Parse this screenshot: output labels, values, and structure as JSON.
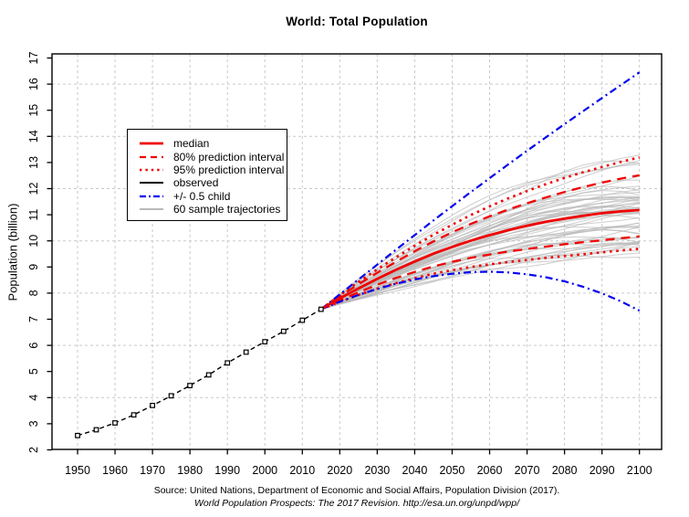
{
  "chart_data": {
    "type": "line",
    "title": "World: Total Population",
    "ylabel": "Population (billion)",
    "xlabel": "",
    "xlim": [
      1943,
      2107
    ],
    "ylim": [
      2,
      17
    ],
    "x_ticks": [
      1950,
      1960,
      1970,
      1980,
      1990,
      2000,
      2010,
      2020,
      2030,
      2040,
      2050,
      2060,
      2070,
      2080,
      2090,
      2100
    ],
    "y_ticks": [
      2,
      3,
      4,
      5,
      6,
      7,
      8,
      9,
      10,
      11,
      12,
      13,
      14,
      15,
      16,
      17
    ],
    "y_gridlines": [
      4,
      6,
      8,
      10,
      12,
      14,
      16
    ],
    "grid": true,
    "colors": {
      "median": "#f00000",
      "observed": "#000000",
      "half_child": "#0000ee",
      "trajectories": "#b9b9b9",
      "gridline": "#c9c9c9",
      "axis": "#000000"
    },
    "series": [
      {
        "name": "pi95-upper",
        "group": "95% prediction interval",
        "color": "#f00000",
        "dash": "2.6,4.6",
        "width": 2.6,
        "marker": "none",
        "x_start": 2015,
        "x_step": 5,
        "values": [
          7.38,
          7.92,
          8.43,
          8.91,
          9.37,
          9.81,
          10.23,
          10.62,
          10.99,
          11.32,
          11.63,
          11.91,
          12.17,
          12.41,
          12.63,
          12.83,
          13.02,
          13.2
        ]
      },
      {
        "name": "pi95-lower",
        "group": "95% prediction interval",
        "color": "#f00000",
        "dash": "2.6,4.6",
        "width": 2.6,
        "marker": "none",
        "x_start": 2015,
        "x_step": 5,
        "values": [
          7.38,
          7.67,
          7.93,
          8.17,
          8.38,
          8.57,
          8.74,
          8.88,
          9.0,
          9.1,
          9.19,
          9.27,
          9.35,
          9.42,
          9.49,
          9.56,
          9.63,
          9.7
        ]
      },
      {
        "name": "pi80-upper",
        "group": "80% prediction interval",
        "color": "#f00000",
        "dash": "10,7",
        "width": 2.3,
        "marker": "none",
        "x_start": 2015,
        "x_step": 5,
        "values": [
          7.38,
          7.88,
          8.34,
          8.78,
          9.2,
          9.6,
          9.98,
          10.33,
          10.65,
          10.94,
          11.2,
          11.44,
          11.66,
          11.87,
          12.06,
          12.23,
          12.38,
          12.51
        ]
      },
      {
        "name": "pi80-lower",
        "group": "80% prediction interval",
        "color": "#f00000",
        "dash": "10,7",
        "width": 2.3,
        "marker": "none",
        "x_start": 2015,
        "x_step": 5,
        "values": [
          7.38,
          7.72,
          8.03,
          8.32,
          8.58,
          8.81,
          9.02,
          9.2,
          9.35,
          9.48,
          9.59,
          9.69,
          9.78,
          9.87,
          9.95,
          10.02,
          10.1,
          10.17
        ]
      },
      {
        "name": "half-child-upper",
        "group": "+/- 0.5 child",
        "color": "#0000ee",
        "dash": "8,4,2,4",
        "width": 2.2,
        "marker": "none",
        "x_start": 2015,
        "x_step": 5,
        "values": [
          7.38,
          7.95,
          8.52,
          9.09,
          9.66,
          10.22,
          10.78,
          11.33,
          11.87,
          12.4,
          12.93,
          13.45,
          13.96,
          14.47,
          14.97,
          15.47,
          15.96,
          16.45
        ]
      },
      {
        "name": "half-child-lower",
        "group": "+/- 0.5 child",
        "color": "#0000ee",
        "dash": "8,4,2,4",
        "width": 2.2,
        "marker": "none",
        "x_start": 2015,
        "x_step": 5,
        "values": [
          7.38,
          7.67,
          7.93,
          8.16,
          8.36,
          8.52,
          8.65,
          8.74,
          8.8,
          8.82,
          8.79,
          8.72,
          8.61,
          8.45,
          8.24,
          7.99,
          7.69,
          7.33
        ]
      },
      {
        "name": "median",
        "group": "median",
        "color": "#f00000",
        "dash": "",
        "width": 2.8,
        "marker": "none",
        "x_start": 2015,
        "x_step": 5,
        "values": [
          7.38,
          7.8,
          8.18,
          8.55,
          8.89,
          9.21,
          9.51,
          9.77,
          10.01,
          10.22,
          10.41,
          10.58,
          10.73,
          10.85,
          10.96,
          11.06,
          11.13,
          11.18
        ]
      },
      {
        "name": "observed",
        "group": "observed",
        "color": "#000000",
        "dash": "5,3.5",
        "width": 1.4,
        "marker": "open-square",
        "x_start": 1950,
        "x_step": 5,
        "values": [
          2.55,
          2.77,
          3.03,
          3.34,
          3.7,
          4.07,
          4.46,
          4.87,
          5.33,
          5.74,
          6.14,
          6.54,
          6.96,
          7.38
        ]
      }
    ],
    "sample_trajectories": {
      "label": "60 sample trajectories",
      "count": 60,
      "seed": 11,
      "start_year": 2015,
      "start_value": 7.38,
      "end_year": 2100,
      "end_center": 11.3,
      "end_spread": 1.8,
      "end_min": 9.6,
      "end_max": 14.7
    },
    "legend": {
      "position": "upper-left",
      "entries": [
        {
          "label": "median",
          "color": "#f00000",
          "dash": "",
          "width": 2.8
        },
        {
          "label": "80% prediction interval",
          "color": "#f00000",
          "dash": "7,5",
          "width": 2.3
        },
        {
          "label": "95% prediction interval",
          "color": "#f00000",
          "dash": "2.4,4",
          "width": 2.6
        },
        {
          "label": "observed",
          "color": "#000000",
          "dash": "",
          "width": 2.0
        },
        {
          "label": "+/- 0.5 child",
          "color": "#0000ee",
          "dash": "7,3,2,3",
          "width": 2.2
        },
        {
          "label": "60 sample trajectories",
          "color": "#b9b9b9",
          "dash": "",
          "width": 2.0
        }
      ]
    }
  },
  "footer": {
    "line1": "Source: United Nations, Department of Economic and Social Affairs, Population Division (2017).",
    "line2": "World Population Prospects: The 2017 Revision. http://esa.un.org/unpd/wpp/"
  }
}
